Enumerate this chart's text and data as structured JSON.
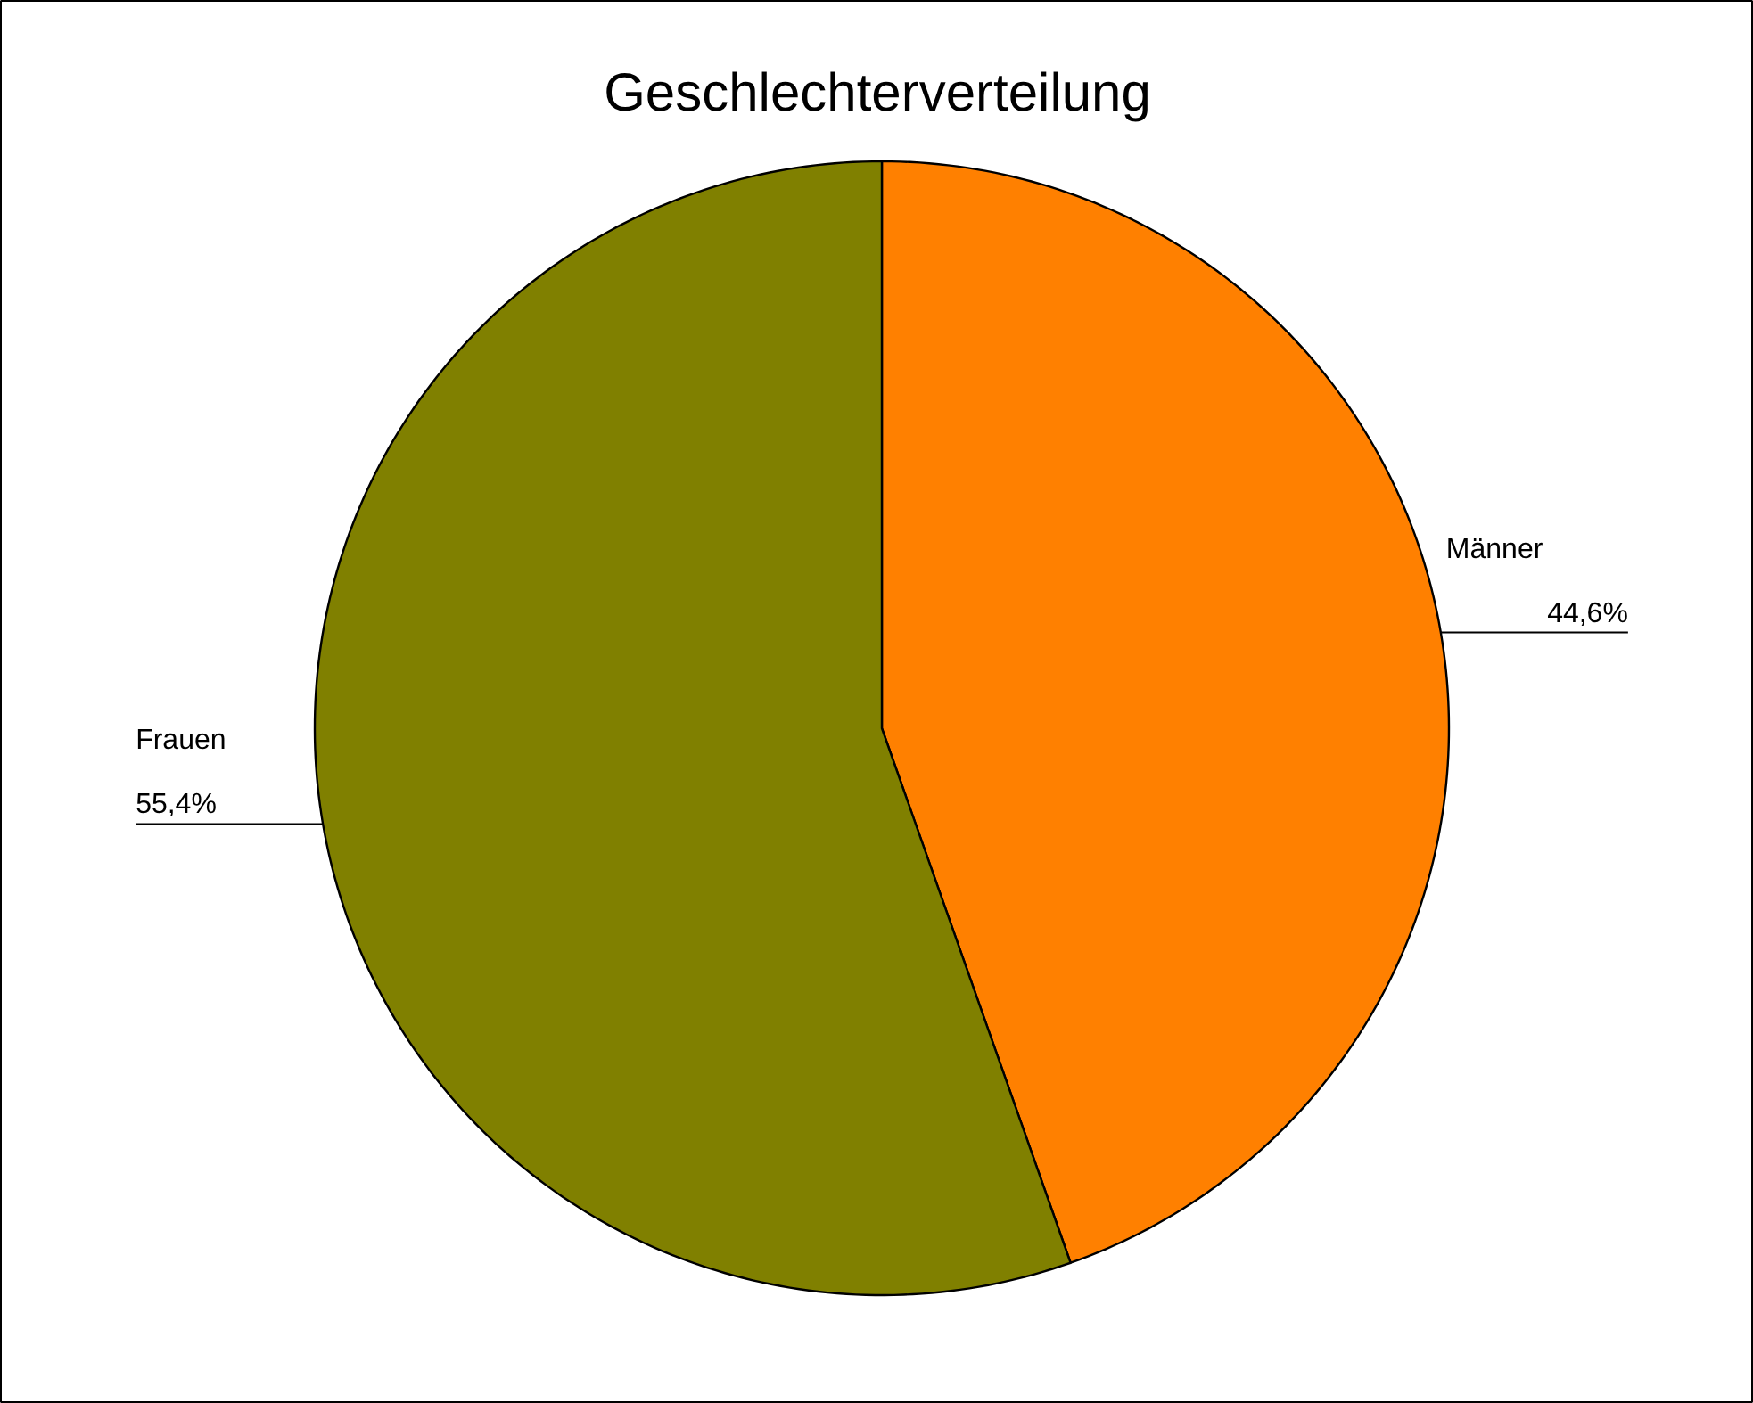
{
  "chart_data": {
    "type": "pie",
    "title": "Geschlechterverteilung",
    "categories": [
      "Männer",
      "Frauen"
    ],
    "values": [
      44.6,
      55.4
    ],
    "value_labels": [
      "44,6%",
      "55,4%"
    ],
    "colors": [
      "#ff8000",
      "#808000"
    ]
  }
}
